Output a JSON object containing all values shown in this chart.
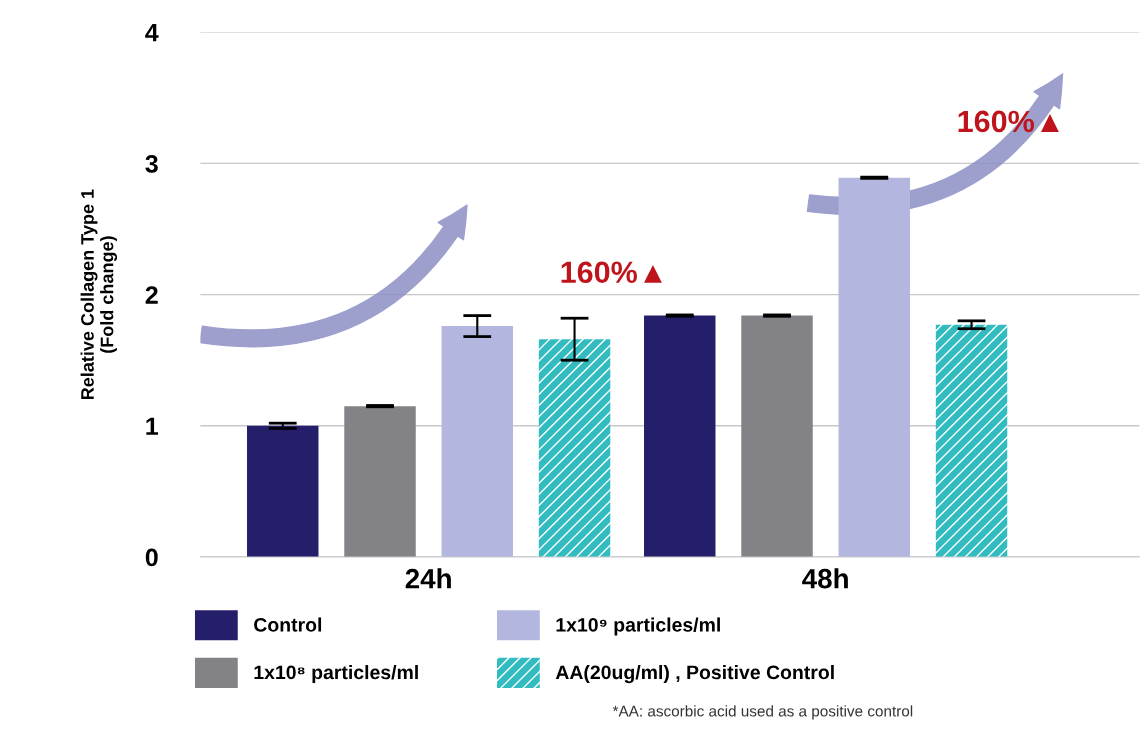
{
  "chart_data": {
    "type": "bar",
    "ylabel": "Relative Collagen Type 1\n(Fold change)",
    "categories": [
      "24h",
      "48h"
    ],
    "series": [
      {
        "name": "Control",
        "color": "#251f6b",
        "values": [
          1.0,
          1.84
        ],
        "errors": [
          0.02,
          0.005
        ]
      },
      {
        "name": "1x10⁸ particles/ml",
        "color": "#828287",
        "values": [
          1.15,
          1.84
        ],
        "errors": [
          0.005,
          0.005
        ]
      },
      {
        "name": "1x10⁹ particles/ml",
        "color": "#b3b6de",
        "values": [
          1.76,
          2.89
        ],
        "errors": [
          0.08,
          0.005
        ]
      },
      {
        "name": "AA(20ug/ml) , Positive Control",
        "color": "#33bcc0",
        "values": [
          1.66,
          1.77
        ],
        "errors": [
          0.16,
          0.03
        ]
      }
    ],
    "ylim": [
      0,
      4
    ],
    "yticks": [
      0,
      1,
      2,
      3,
      4
    ],
    "grid": "y",
    "legend": "bottom",
    "annotations": [
      "160%▲",
      "160%▲",
      "*AA: ascorbic acid used as a positive control"
    ]
  }
}
